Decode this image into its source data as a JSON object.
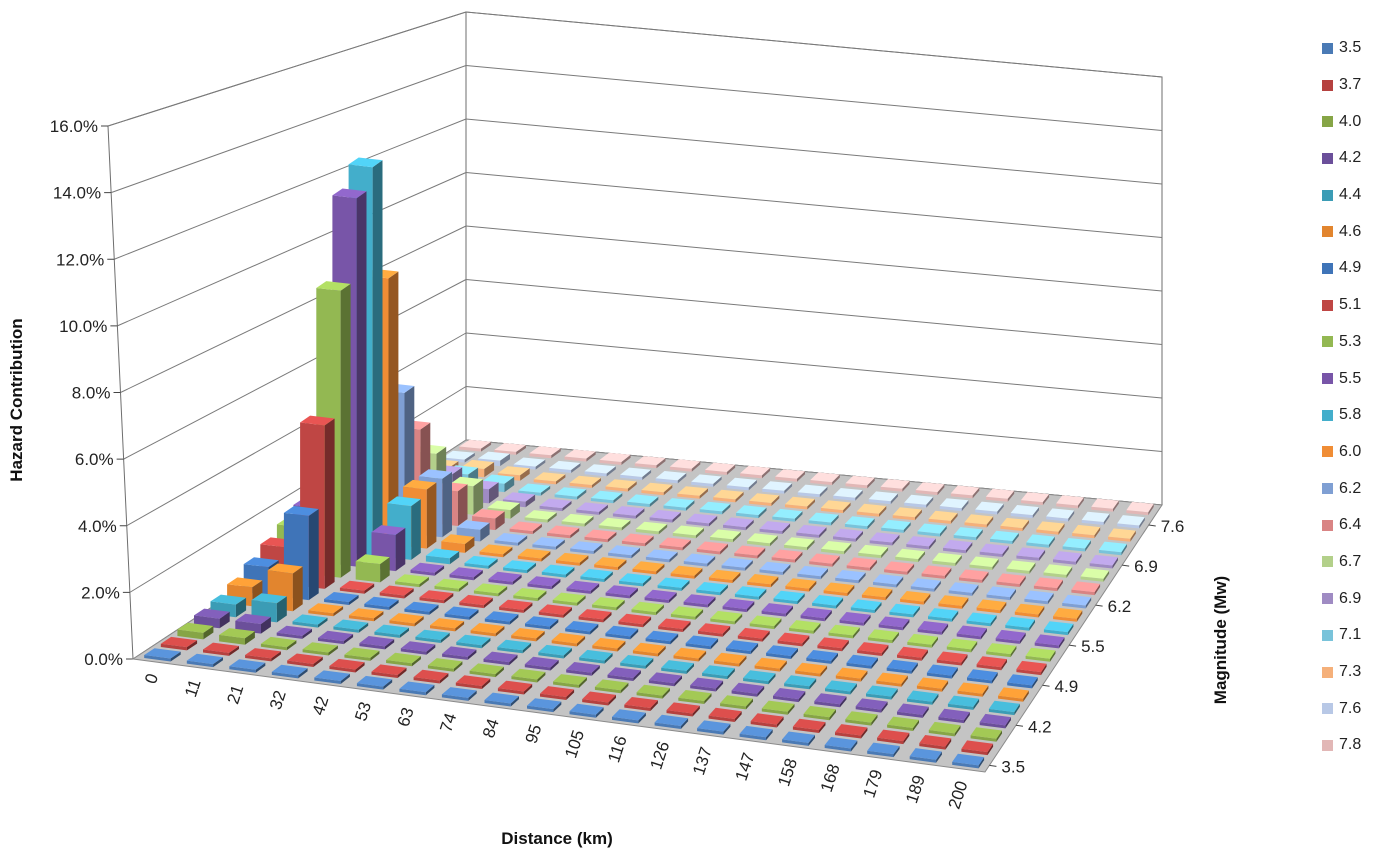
{
  "chart_data": {
    "type": "bar3d",
    "xlabel": "Distance (km)",
    "ylabel": "Hazard Contribution",
    "zlabel": "Magnitude (Mw)",
    "ylim": [
      0,
      0.16
    ],
    "y_ticks": [
      "0.0%",
      "2.0%",
      "4.0%",
      "6.0%",
      "8.0%",
      "10.0%",
      "12.0%",
      "14.0%",
      "16.0%"
    ],
    "x_categories": [
      "0",
      "11",
      "21",
      "32",
      "42",
      "53",
      "63",
      "74",
      "84",
      "95",
      "105",
      "116",
      "126",
      "137",
      "147",
      "158",
      "168",
      "179",
      "189",
      "200"
    ],
    "z_tick_labels": [
      "3.5",
      "4.2",
      "4.9",
      "5.5",
      "6.2",
      "6.9",
      "7.6"
    ],
    "grid": true,
    "legend_position": "right",
    "series": [
      {
        "name": "3.5",
        "color": "#4a7ab5",
        "values": [
          0,
          0,
          0,
          0,
          0,
          0,
          0,
          0,
          0,
          0,
          0,
          0,
          0,
          0,
          0,
          0,
          0,
          0,
          0,
          0
        ]
      },
      {
        "name": "3.7",
        "color": "#b5413f",
        "values": [
          0.001,
          0,
          0,
          0,
          0,
          0,
          0,
          0,
          0,
          0,
          0,
          0,
          0,
          0,
          0,
          0,
          0,
          0,
          0,
          0
        ]
      },
      {
        "name": "4.0",
        "color": "#86a546",
        "values": [
          0.002,
          0.002,
          0,
          0,
          0,
          0,
          0,
          0,
          0,
          0,
          0,
          0,
          0,
          0,
          0,
          0,
          0,
          0,
          0,
          0
        ]
      },
      {
        "name": "4.2",
        "color": "#6b4f9a",
        "values": [
          0.003,
          0.003,
          0,
          0,
          0,
          0,
          0,
          0,
          0,
          0,
          0,
          0,
          0,
          0,
          0,
          0,
          0,
          0,
          0,
          0
        ]
      },
      {
        "name": "4.4",
        "color": "#3b9cb5",
        "values": [
          0.004,
          0.006,
          0,
          0,
          0,
          0,
          0,
          0,
          0,
          0,
          0,
          0,
          0,
          0,
          0,
          0,
          0,
          0,
          0,
          0
        ]
      },
      {
        "name": "4.6",
        "color": "#e2852e",
        "values": [
          0.006,
          0.012,
          0,
          0,
          0,
          0,
          0,
          0,
          0,
          0,
          0,
          0,
          0,
          0,
          0,
          0,
          0,
          0,
          0,
          0
        ]
      },
      {
        "name": "4.9",
        "color": "#3f74b8",
        "values": [
          0.009,
          0.027,
          0,
          0,
          0,
          0,
          0,
          0,
          0,
          0,
          0,
          0,
          0,
          0,
          0,
          0,
          0,
          0,
          0,
          0
        ]
      },
      {
        "name": "5.1",
        "color": "#bf4644",
        "values": [
          0.012,
          0.053,
          0.001,
          0,
          0,
          0,
          0,
          0,
          0,
          0,
          0,
          0,
          0,
          0,
          0,
          0,
          0,
          0,
          0,
          0
        ]
      },
      {
        "name": "5.3",
        "color": "#93b852",
        "values": [
          0.015,
          0.094,
          0.006,
          0,
          0,
          0,
          0,
          0,
          0,
          0,
          0,
          0,
          0,
          0,
          0,
          0,
          0,
          0,
          0,
          0
        ]
      },
      {
        "name": "5.5",
        "color": "#7855a8",
        "values": [
          0.018,
          0.122,
          0.012,
          0.001,
          0,
          0,
          0,
          0,
          0,
          0,
          0,
          0,
          0,
          0,
          0,
          0,
          0,
          0,
          0,
          0
        ]
      },
      {
        "name": "5.8",
        "color": "#43aecb",
        "values": [
          0.02,
          0.13,
          0.018,
          0.002,
          0,
          0,
          0,
          0,
          0,
          0,
          0,
          0,
          0,
          0,
          0,
          0,
          0,
          0,
          0,
          0
        ]
      },
      {
        "name": "6.0",
        "color": "#f08d35",
        "values": [
          0.022,
          0.09,
          0.02,
          0.003,
          0,
          0,
          0,
          0,
          0,
          0,
          0,
          0,
          0,
          0,
          0,
          0,
          0,
          0,
          0,
          0
        ]
      },
      {
        "name": "6.2",
        "color": "#7f9fd3",
        "values": [
          0.02,
          0.048,
          0.02,
          0.004,
          0,
          0,
          0,
          0,
          0,
          0,
          0,
          0,
          0,
          0,
          0,
          0,
          0,
          0,
          0,
          0
        ]
      },
      {
        "name": "6.4",
        "color": "#d98484",
        "values": [
          0.015,
          0.032,
          0.012,
          0.004,
          0,
          0,
          0,
          0,
          0,
          0,
          0,
          0,
          0,
          0,
          0,
          0,
          0,
          0,
          0,
          0
        ]
      },
      {
        "name": "6.7",
        "color": "#b3d08a",
        "values": [
          0.01,
          0.02,
          0.01,
          0.003,
          0,
          0,
          0,
          0,
          0,
          0,
          0,
          0,
          0,
          0,
          0,
          0,
          0,
          0,
          0,
          0
        ]
      },
      {
        "name": "6.9",
        "color": "#9f8bc3",
        "values": [
          0.005,
          0.009,
          0.005,
          0.002,
          0,
          0,
          0,
          0,
          0,
          0,
          0,
          0,
          0,
          0,
          0,
          0,
          0,
          0,
          0,
          0
        ]
      },
      {
        "name": "7.1",
        "color": "#79c3da",
        "values": [
          0.003,
          0.005,
          0.003,
          0.001,
          0,
          0,
          0,
          0,
          0,
          0,
          0,
          0,
          0,
          0,
          0,
          0,
          0,
          0,
          0,
          0
        ]
      },
      {
        "name": "7.3",
        "color": "#f5b07a",
        "values": [
          0.002,
          0.003,
          0.002,
          0,
          0,
          0,
          0,
          0,
          0,
          0,
          0,
          0,
          0,
          0,
          0,
          0,
          0,
          0,
          0,
          0
        ]
      },
      {
        "name": "7.6",
        "color": "#b8c8e6",
        "values": [
          0.001,
          0.002,
          0.001,
          0,
          0,
          0,
          0,
          0,
          0,
          0,
          0,
          0,
          0,
          0,
          0,
          0,
          0,
          0,
          0,
          0
        ]
      },
      {
        "name": "7.8",
        "color": "#e2b7b6",
        "values": [
          0.001,
          0.001,
          0,
          0,
          0,
          0,
          0,
          0,
          0,
          0,
          0,
          0,
          0,
          0,
          0,
          0,
          0,
          0,
          0,
          0
        ]
      }
    ]
  }
}
